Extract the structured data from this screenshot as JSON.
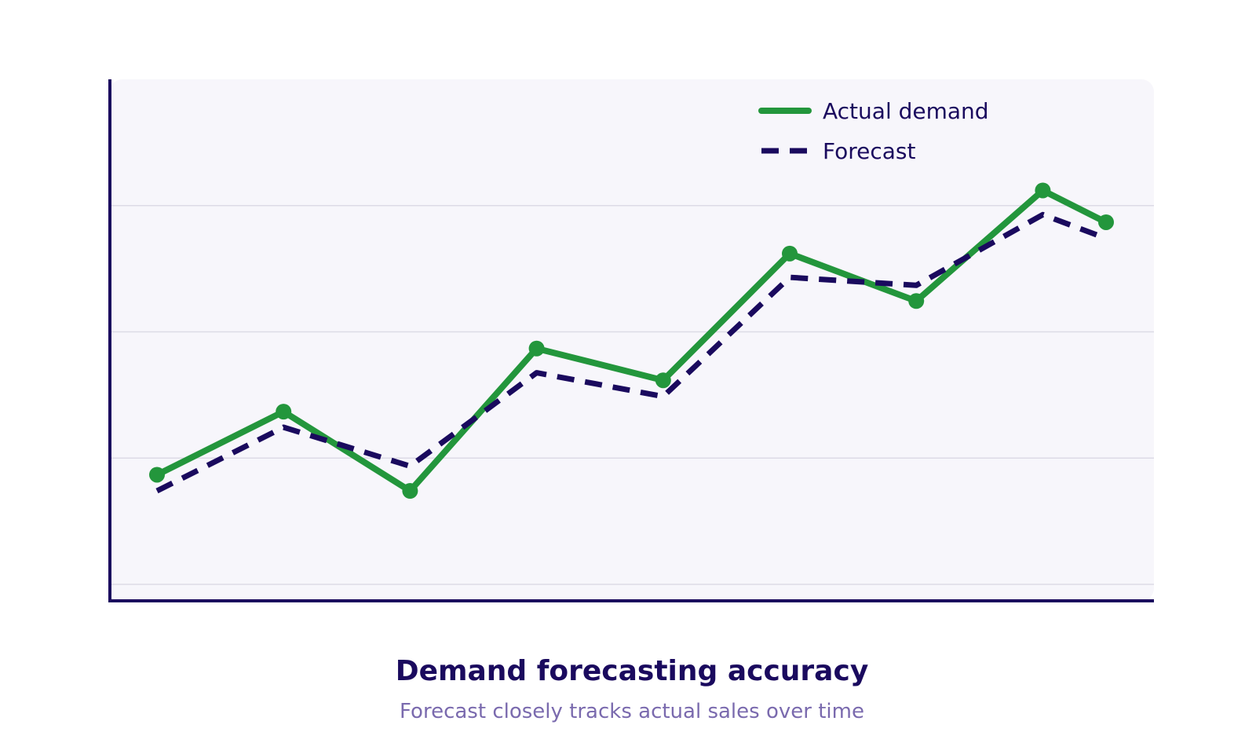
{
  "chart_data": {
    "type": "line",
    "title": "Demand forecasting accuracy",
    "subtitle": "Forecast closely tracks actual sales over time",
    "xlabel": "",
    "ylabel": "",
    "x": [
      0,
      1,
      2,
      3,
      4,
      5,
      6,
      7,
      7.5
    ],
    "ylim": [
      0,
      100
    ],
    "yticks": [
      0,
      25,
      50,
      75
    ],
    "grid": true,
    "legend_position": "top-right",
    "series": [
      {
        "name": "Actual demand",
        "values": [
          21.7,
          34.2,
          18.5,
          46.7,
          40.4,
          65.5,
          56.1,
          78.0,
          71.7
        ],
        "color": "#23963c",
        "style": "solid",
        "markers": true
      },
      {
        "name": "Forecast",
        "values": [
          18.5,
          31.1,
          23.4,
          41.9,
          37.2,
          60.8,
          59.2,
          73.2,
          68.5
        ],
        "color": "#1a0a5e",
        "style": "dashed",
        "markers": false
      }
    ],
    "colors": {
      "axis": "#1a0a5e",
      "plot_background": "#f7f6fb",
      "grid": "#dddbe6",
      "title": "#1a0a5e",
      "subtitle": "#7a6aae"
    }
  }
}
